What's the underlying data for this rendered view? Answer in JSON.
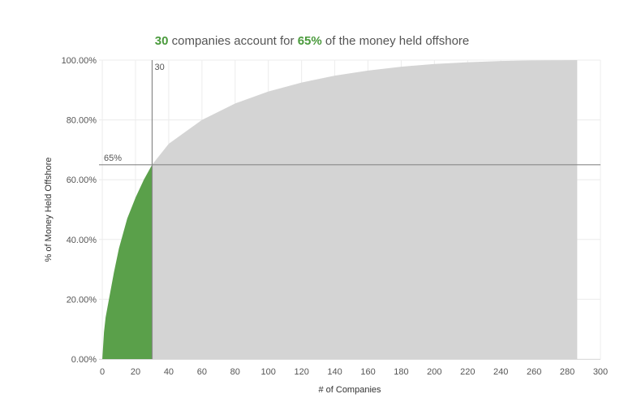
{
  "title": {
    "count": "30",
    "text_a": " companies account for ",
    "percent": "65%",
    "text_b": " of the money held offshore"
  },
  "colors": {
    "highlight": "#5aa04a",
    "rest": "#d4d4d4",
    "reference_line": "#888888",
    "gridline": "#ececec",
    "title_accent": "#4a9a3c"
  },
  "chart_data": {
    "type": "area",
    "xlabel": "# of Companies",
    "ylabel": "% of Money Held Offshore",
    "xlim": [
      -2,
      300
    ],
    "ylim": [
      0,
      100
    ],
    "x_ticks": [
      "0",
      "20",
      "40",
      "60",
      "80",
      "100",
      "120",
      "140",
      "160",
      "180",
      "200",
      "220",
      "240",
      "260",
      "280",
      "300"
    ],
    "y_ticks": [
      "0.00%",
      "20.00%",
      "40.00%",
      "60.00%",
      "80.00%",
      "100.00%"
    ],
    "y_tick_values": [
      0,
      20,
      40,
      60,
      80,
      100
    ],
    "x_max_companies": 286,
    "curve": [
      {
        "x": 0,
        "y": 0
      },
      {
        "x": 1,
        "y": 9
      },
      {
        "x": 2,
        "y": 14
      },
      {
        "x": 4,
        "y": 20
      },
      {
        "x": 7,
        "y": 29
      },
      {
        "x": 10,
        "y": 37
      },
      {
        "x": 15,
        "y": 47
      },
      {
        "x": 20,
        "y": 54
      },
      {
        "x": 25,
        "y": 60
      },
      {
        "x": 30,
        "y": 65
      },
      {
        "x": 40,
        "y": 72
      },
      {
        "x": 60,
        "y": 80
      },
      {
        "x": 80,
        "y": 85.5
      },
      {
        "x": 100,
        "y": 89.5
      },
      {
        "x": 120,
        "y": 92.5
      },
      {
        "x": 140,
        "y": 94.8
      },
      {
        "x": 160,
        "y": 96.5
      },
      {
        "x": 180,
        "y": 97.8
      },
      {
        "x": 200,
        "y": 98.7
      },
      {
        "x": 220,
        "y": 99.3
      },
      {
        "x": 240,
        "y": 99.7
      },
      {
        "x": 260,
        "y": 99.9
      },
      {
        "x": 286,
        "y": 100
      }
    ],
    "reference_lines": {
      "x": 30,
      "x_label": "30",
      "y": 65,
      "y_label": "65%"
    },
    "grid": true
  }
}
